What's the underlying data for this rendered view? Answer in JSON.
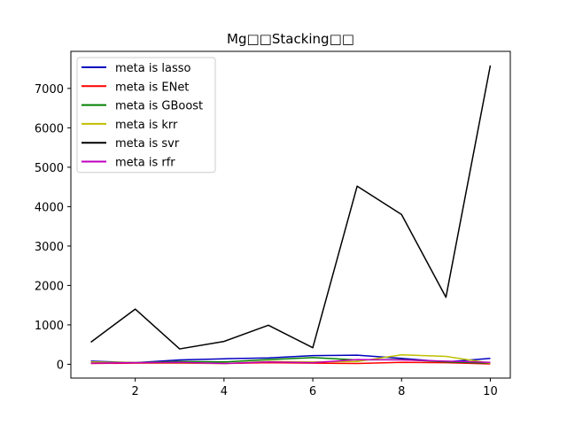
{
  "chart_data": {
    "type": "line",
    "title": "Mg□□Stacking□□",
    "xlabel": "",
    "ylabel": "",
    "xlim": [
      0.55,
      10.45
    ],
    "ylim": [
      -350,
      7940
    ],
    "x": [
      1,
      2,
      3,
      4,
      5,
      6,
      7,
      8,
      9,
      10
    ],
    "xticks": [
      2,
      4,
      6,
      8,
      10
    ],
    "yticks": [
      0,
      1000,
      2000,
      3000,
      4000,
      5000,
      6000,
      7000
    ],
    "grid": false,
    "legend_position": "top-left",
    "series": [
      {
        "name": "meta is lasso",
        "color": "#0000bf",
        "values": [
          80,
          40,
          110,
          140,
          160,
          220,
          230,
          150,
          60,
          150
        ]
      },
      {
        "name": "meta is ENet",
        "color": "#ff0000",
        "values": [
          20,
          30,
          30,
          20,
          40,
          30,
          20,
          50,
          40,
          10
        ]
      },
      {
        "name": "meta is GBoost",
        "color": "#008000",
        "values": [
          50,
          40,
          70,
          60,
          120,
          170,
          110,
          120,
          60,
          30
        ]
      },
      {
        "name": "meta is krr",
        "color": "#bfbf00",
        "values": [
          60,
          40,
          40,
          20,
          70,
          60,
          70,
          240,
          200,
          30
        ]
      },
      {
        "name": "meta is svr",
        "color": "#000000",
        "values": [
          560,
          1400,
          390,
          580,
          990,
          420,
          4520,
          3800,
          1700,
          7580
        ]
      },
      {
        "name": "meta is rfr",
        "color": "#bf00bf",
        "values": [
          30,
          40,
          50,
          20,
          60,
          40,
          120,
          110,
          80,
          50
        ]
      }
    ]
  }
}
